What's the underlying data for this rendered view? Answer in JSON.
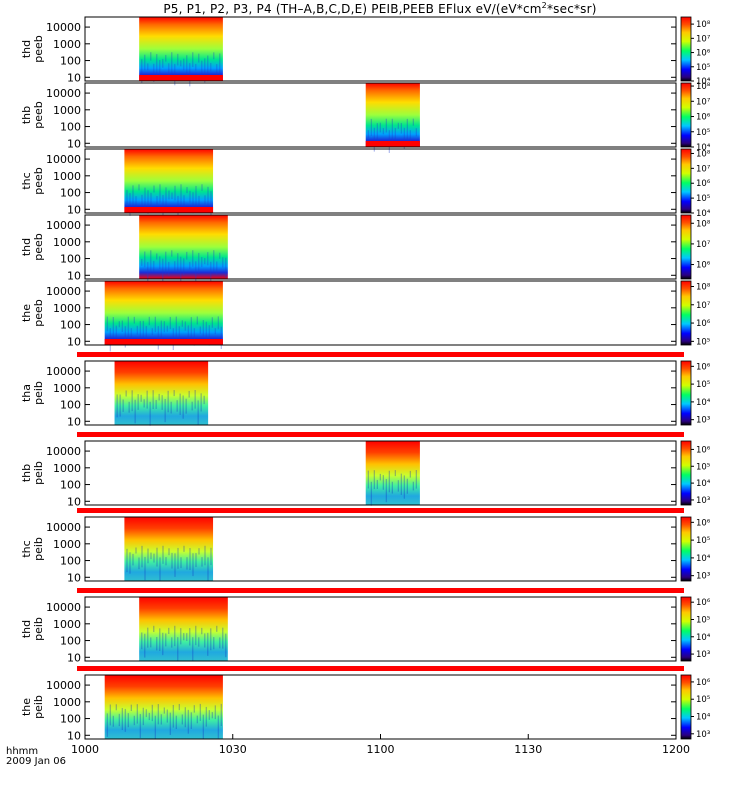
{
  "figure": {
    "title_prefix": "P5, P1, P2, P3, P4 (TH–A,B,C,D,E) PEIB,PEEB EFlux eV/(eV*cm",
    "title_sup": "2",
    "title_suffix": "*sec*sr)",
    "x_label": "hhmm",
    "date_label": "2009 Jan 06",
    "x_ticks": [
      "1000",
      "1030",
      "1100",
      "1130",
      "1200"
    ]
  },
  "colors": {
    "axis": "#000000",
    "saturated_band": "#ff0000",
    "background": "#ffffff"
  },
  "chart_data": {
    "type": "heatmap",
    "x_axis": {
      "unit": "hhmm",
      "range": [
        "10:00",
        "12:00"
      ],
      "ticks": [
        "1000",
        "1030",
        "1100",
        "1130",
        "1200"
      ]
    },
    "y_axis": {
      "scale": "log",
      "range": [
        6,
        40000
      ],
      "ticks": [
        "10",
        "100",
        "1000",
        "10000"
      ]
    },
    "colorbar_scale": "log",
    "panels": [
      {
        "label": [
          "thd",
          "peeb"
        ],
        "cb_ticks": [
          "10⁴",
          "10⁵",
          "10⁶",
          "10⁷",
          "10⁸"
        ],
        "cb_range": [
          4,
          8.5
        ],
        "data_x": [
          "10:11",
          "10:28"
        ],
        "bottom_band": true,
        "top_band": false
      },
      {
        "label": [
          "thb",
          "peeb"
        ],
        "cb_ticks": [
          "10⁴",
          "10⁵",
          "10⁶",
          "10⁷",
          "10⁸"
        ],
        "cb_range": [
          4,
          8.2
        ],
        "data_x": [
          "10:57",
          "11:08"
        ],
        "bottom_band": true,
        "top_band": false
      },
      {
        "label": [
          "thc",
          "peeb"
        ],
        "cb_ticks": [
          "10⁴",
          "10⁵",
          "10⁶",
          "10⁷",
          "10⁸"
        ],
        "cb_range": [
          4,
          8.3
        ],
        "data_x": [
          "10:08",
          "10:26"
        ],
        "bottom_band": true,
        "top_band": false
      },
      {
        "label": [
          "thd",
          "peeb"
        ],
        "cb_ticks": [
          "10⁶",
          "10⁷",
          "10⁸"
        ],
        "cb_range": [
          5.3,
          8.4
        ],
        "data_x": [
          "10:11",
          "10:29"
        ],
        "bottom_band": false,
        "top_band": false
      },
      {
        "label": [
          "the",
          "peeb"
        ],
        "cb_ticks": [
          "10⁵",
          "10⁶",
          "10⁷",
          "10⁸"
        ],
        "cb_range": [
          4.8,
          8.3
        ],
        "data_x": [
          "10:04",
          "10:28"
        ],
        "bottom_band": true,
        "top_band": false
      },
      {
        "label": [
          "tha",
          "peib"
        ],
        "cb_ticks": [
          "10³",
          "10⁴",
          "10⁵",
          "10⁶"
        ],
        "cb_range": [
          2.7,
          6.3
        ],
        "data_x": [
          "10:06",
          "10:25"
        ],
        "bottom_band": false,
        "top_band": true
      },
      {
        "label": [
          "thb",
          "peib"
        ],
        "cb_ticks": [
          "10³",
          "10⁴",
          "10⁵",
          "10⁶"
        ],
        "cb_range": [
          2.7,
          6.5
        ],
        "data_x": [
          "10:57",
          "11:08"
        ],
        "bottom_band": false,
        "top_band": true
      },
      {
        "label": [
          "thc",
          "peib"
        ],
        "cb_ticks": [
          "10³",
          "10⁴",
          "10⁵",
          "10⁶"
        ],
        "cb_range": [
          2.7,
          6.3
        ],
        "data_x": [
          "10:08",
          "10:26"
        ],
        "bottom_band": false,
        "top_band": true
      },
      {
        "label": [
          "thd",
          "peib"
        ],
        "cb_ticks": [
          "10³",
          "10⁴",
          "10⁵",
          "10⁶"
        ],
        "cb_range": [
          2.6,
          6.3
        ],
        "data_x": [
          "10:11",
          "10:29"
        ],
        "bottom_band": false,
        "top_band": true
      },
      {
        "label": [
          "the",
          "peib"
        ],
        "cb_ticks": [
          "10³",
          "10⁴",
          "10⁵",
          "10⁶"
        ],
        "cb_range": [
          2.7,
          6.4
        ],
        "data_x": [
          "10:04",
          "10:28"
        ],
        "bottom_band": false,
        "top_band": true
      }
    ]
  }
}
